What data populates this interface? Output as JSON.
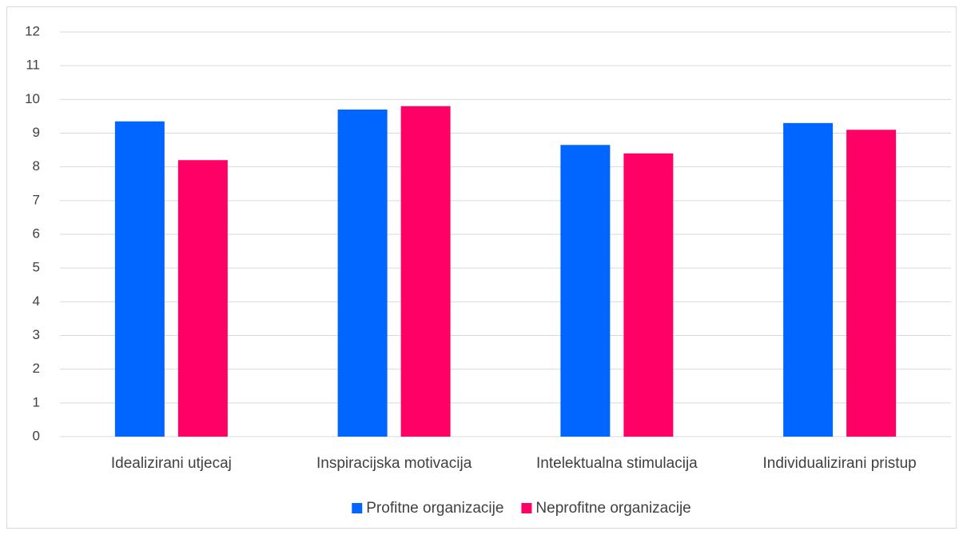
{
  "chart_data": {
    "type": "bar",
    "categories": [
      "Idealizirani utjecaj",
      "Inspiracijska motivacija",
      "Intelektualna stimulacija",
      "Individualizirani pristup"
    ],
    "series": [
      {
        "name": "Profitne organizacije",
        "color": "#0066ff",
        "values": [
          9.35,
          9.7,
          8.65,
          9.3
        ]
      },
      {
        "name": "Neprofitne organizacije",
        "color": "#ff0066",
        "values": [
          8.2,
          9.8,
          8.4,
          9.1
        ]
      }
    ],
    "ylim": [
      0,
      12
    ],
    "yticks": [
      0,
      1,
      2,
      3,
      4,
      5,
      6,
      7,
      8,
      9,
      10,
      11,
      12
    ],
    "grid": true,
    "legend": "bottom"
  }
}
